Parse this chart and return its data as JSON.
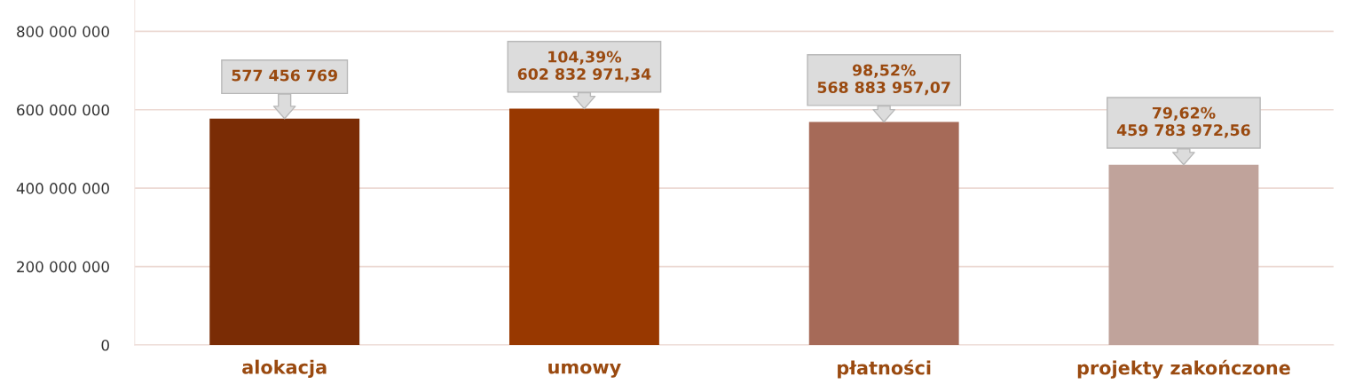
{
  "chart_data": {
    "type": "bar",
    "categories": [
      "alokacja",
      "umowy",
      "płatności",
      "projekty zakończone"
    ],
    "values": [
      577456769,
      602832971.34,
      568883957.07,
      459783972.56
    ],
    "colors": [
      "#7a2c05",
      "#983800",
      "#a66a58",
      "#c0a39b"
    ],
    "value_labels": [
      "577 456 769",
      "104,39%\n602 832 971,34",
      "98,52%\n568 883 957,07",
      "79,62%\n459 783 972,56"
    ],
    "ylim": [
      0,
      880000000
    ],
    "yticks": [
      {
        "value": 0,
        "label": "0"
      },
      {
        "value": 200000000,
        "label": "200 000 000"
      },
      {
        "value": 400000000,
        "label": "400 000 000"
      },
      {
        "value": 600000000,
        "label": "600 000 000"
      },
      {
        "value": 800000000,
        "label": "800 000 000"
      }
    ],
    "grid": "y",
    "legend": false
  }
}
